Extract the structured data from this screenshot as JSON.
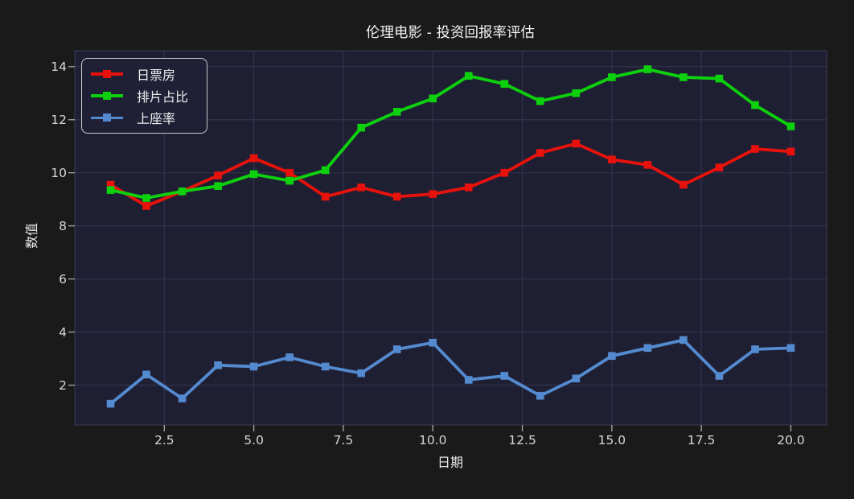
{
  "theme": {
    "outer_bg": "#1a1a1a",
    "plot_bg": "#1f1f33",
    "grid_color": "#32324d",
    "spine_color": "#3c3c5a",
    "tick_mark_color": "#aaaaaa",
    "text_color": "#ededed",
    "legend_border": "#c9c9cf"
  },
  "chart_data": {
    "type": "line",
    "title": "伦理电影 - 投资回报率评估",
    "xlabel": "日期",
    "ylabel": "数值",
    "grid": true,
    "legend_position": "upper-left",
    "xlim": [
      0,
      21
    ],
    "ylim": [
      0.5,
      14.6
    ],
    "x": [
      1,
      2,
      3,
      4,
      5,
      6,
      7,
      8,
      9,
      10,
      11,
      12,
      13,
      14,
      15,
      16,
      17,
      18,
      19,
      20
    ],
    "xticks": [
      {
        "v": 2.5,
        "label": "2.5"
      },
      {
        "v": 5,
        "label": "5.0"
      },
      {
        "v": 7.5,
        "label": "7.5"
      },
      {
        "v": 10,
        "label": "10.0"
      },
      {
        "v": 12.5,
        "label": "12.5"
      },
      {
        "v": 15,
        "label": "15.0"
      },
      {
        "v": 17.5,
        "label": "17.5"
      },
      {
        "v": 20,
        "label": "20.0"
      }
    ],
    "yticks": [
      {
        "v": 2,
        "label": "2"
      },
      {
        "v": 4,
        "label": "4"
      },
      {
        "v": 6,
        "label": "6"
      },
      {
        "v": 8,
        "label": "8"
      },
      {
        "v": 10,
        "label": "10"
      },
      {
        "v": 12,
        "label": "12"
      },
      {
        "v": 14,
        "label": "14"
      }
    ],
    "series": [
      {
        "name": "日票房",
        "color": "#e8120c",
        "marker": "square",
        "values": [
          9.55,
          8.75,
          9.3,
          9.9,
          10.55,
          10.0,
          9.1,
          9.45,
          9.1,
          9.2,
          9.45,
          10.0,
          10.75,
          11.1,
          10.5,
          10.3,
          9.55,
          10.2,
          10.9,
          10.8
        ]
      },
      {
        "name": "排片占比",
        "color": "#0ed10e",
        "marker": "square",
        "values": [
          9.35,
          9.05,
          9.3,
          9.5,
          9.95,
          9.7,
          10.1,
          11.7,
          12.3,
          12.8,
          13.65,
          13.35,
          12.7,
          13.0,
          13.6,
          13.9,
          13.6,
          13.55,
          12.55,
          11.75
        ]
      },
      {
        "name": "上座率",
        "color": "#548bd0",
        "marker": "square",
        "values": [
          1.3,
          2.4,
          1.5,
          2.75,
          2.7,
          3.05,
          2.7,
          2.45,
          3.35,
          3.6,
          2.2,
          2.35,
          1.6,
          2.25,
          3.1,
          3.4,
          3.7,
          2.35,
          3.35,
          3.4
        ]
      }
    ]
  }
}
